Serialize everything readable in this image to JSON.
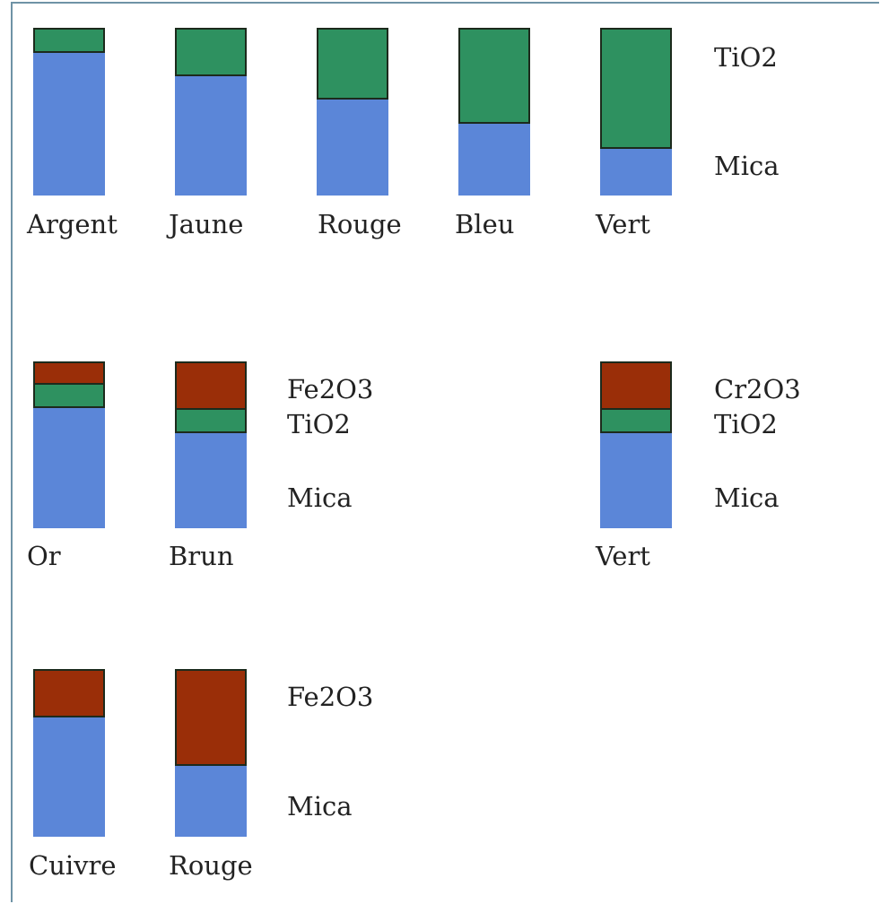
{
  "colors": {
    "mica": "#5b86d8",
    "tio2": "#2e9160",
    "fe2o3": "#9a2e08",
    "cr2o3": "#9a2e08"
  },
  "layers": {
    "mica": "Mica",
    "tio2": "TiO2",
    "fe2o3": "Fe2O3",
    "cr2o3": "Cr2O3"
  },
  "rows": [
    {
      "bars": [
        {
          "name": "Argent",
          "layers": [
            {
              "layer": "tio2",
              "fraction": 0.15
            },
            {
              "layer": "mica",
              "fraction": 0.85
            }
          ]
        },
        {
          "name": "Jaune",
          "layers": [
            {
              "layer": "tio2",
              "fraction": 0.29
            },
            {
              "layer": "mica",
              "fraction": 0.71
            }
          ]
        },
        {
          "name": "Rouge",
          "layers": [
            {
              "layer": "tio2",
              "fraction": 0.43
            },
            {
              "layer": "mica",
              "fraction": 0.57
            }
          ]
        },
        {
          "name": "Bleu",
          "layers": [
            {
              "layer": "tio2",
              "fraction": 0.57
            },
            {
              "layer": "mica",
              "fraction": 0.43
            }
          ]
        },
        {
          "name": "Vert",
          "layers": [
            {
              "layer": "tio2",
              "fraction": 0.72
            },
            {
              "layer": "mica",
              "fraction": 0.28
            }
          ]
        }
      ],
      "legend": [
        "TiO2",
        "Mica"
      ]
    },
    {
      "bars": [
        {
          "name": "Or",
          "layers": [
            {
              "layer": "fe2o3",
              "fraction": 0.14
            },
            {
              "layer": "tio2",
              "fraction": 0.14
            },
            {
              "layer": "mica",
              "fraction": 0.72
            }
          ]
        },
        {
          "name": "Brun",
          "layers": [
            {
              "layer": "fe2o3",
              "fraction": 0.29
            },
            {
              "layer": "tio2",
              "fraction": 0.14
            },
            {
              "layer": "mica",
              "fraction": 0.57
            }
          ]
        },
        {
          "name": "Vert",
          "layers": [
            {
              "layer": "cr2o3",
              "fraction": 0.29
            },
            {
              "layer": "tio2",
              "fraction": 0.14
            },
            {
              "layer": "mica",
              "fraction": 0.57
            }
          ]
        }
      ],
      "legend_a": [
        "Fe2O3",
        "TiO2",
        "Mica"
      ],
      "legend_b": [
        "Cr2O3",
        "TiO2",
        "Mica"
      ]
    },
    {
      "bars": [
        {
          "name": "Cuivre",
          "layers": [
            {
              "layer": "fe2o3",
              "fraction": 0.29
            },
            {
              "layer": "mica",
              "fraction": 0.71
            }
          ]
        },
        {
          "name": "Rouge",
          "layers": [
            {
              "layer": "fe2o3",
              "fraction": 0.58
            },
            {
              "layer": "mica",
              "fraction": 0.42
            }
          ]
        }
      ],
      "legend": [
        "Fe2O3",
        "Mica"
      ]
    }
  ]
}
